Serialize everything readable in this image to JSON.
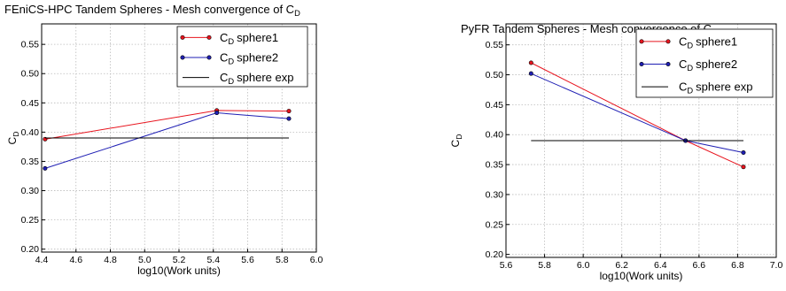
{
  "chart_data": [
    {
      "type": "line",
      "title": "FEniCS-HPC Tandem Spheres - Mesh convergence of C",
      "title_sub": "D",
      "xlabel": "log10(Work units)",
      "ylabel": "C",
      "ylabel_sub": "D",
      "xlim": [
        4.4,
        6.0
      ],
      "ylim": [
        0.195,
        0.585
      ],
      "xticks": [
        "4.4",
        "4.6",
        "4.8",
        "5.0",
        "5.2",
        "5.4",
        "5.6",
        "5.8",
        "6.0"
      ],
      "yticks": [
        "0.20",
        "0.25",
        "0.30",
        "0.35",
        "0.40",
        "0.45",
        "0.50",
        "0.55"
      ],
      "grid": true,
      "legend_position": "top-right",
      "series": [
        {
          "name": "sphere1",
          "label_prefix": "C",
          "label_sub": "D",
          "color": "#e8141e",
          "markers": true,
          "x": [
            4.42,
            5.42,
            5.84
          ],
          "y": [
            0.388,
            0.437,
            0.436
          ]
        },
        {
          "name": "sphere2",
          "label_prefix": "C",
          "label_sub": "D",
          "color": "#1f1fb4",
          "markers": true,
          "x": [
            4.42,
            5.42,
            5.84
          ],
          "y": [
            0.338,
            0.433,
            0.423
          ]
        },
        {
          "name": "sphere exp",
          "label_prefix": "C",
          "label_sub": "D",
          "color": "#000000",
          "markers": false,
          "x": [
            4.42,
            5.84
          ],
          "y": [
            0.39,
            0.39
          ]
        }
      ]
    },
    {
      "type": "line",
      "title": "PyFR Tandem Spheres - Mesh convergence of C",
      "title_sub": "D",
      "xlabel": "log10(Work units)",
      "ylabel": "C",
      "ylabel_sub": "D",
      "xlim": [
        5.6,
        7.0
      ],
      "ylim": [
        0.195,
        0.585
      ],
      "xticks": [
        "5.6",
        "5.8",
        "6.0",
        "6.2",
        "6.4",
        "6.6",
        "6.8",
        "7.0"
      ],
      "yticks": [
        "0.20",
        "0.25",
        "0.30",
        "0.35",
        "0.40",
        "0.45",
        "0.50",
        "0.55"
      ],
      "grid": true,
      "legend_position": "top-right",
      "series": [
        {
          "name": "sphere1",
          "label_prefix": "C",
          "label_sub": "D",
          "color": "#e8141e",
          "markers": true,
          "x": [
            5.73,
            6.53,
            6.83
          ],
          "y": [
            0.52,
            0.39,
            0.346
          ]
        },
        {
          "name": "sphere2",
          "label_prefix": "C",
          "label_sub": "D",
          "color": "#1f1fb4",
          "markers": true,
          "x": [
            5.73,
            6.53,
            6.83
          ],
          "y": [
            0.502,
            0.39,
            0.37
          ]
        },
        {
          "name": "sphere exp",
          "label_prefix": "C",
          "label_sub": "D",
          "color": "#000000",
          "markers": false,
          "x": [
            5.73,
            6.83
          ],
          "y": [
            0.39,
            0.39
          ]
        }
      ]
    }
  ]
}
